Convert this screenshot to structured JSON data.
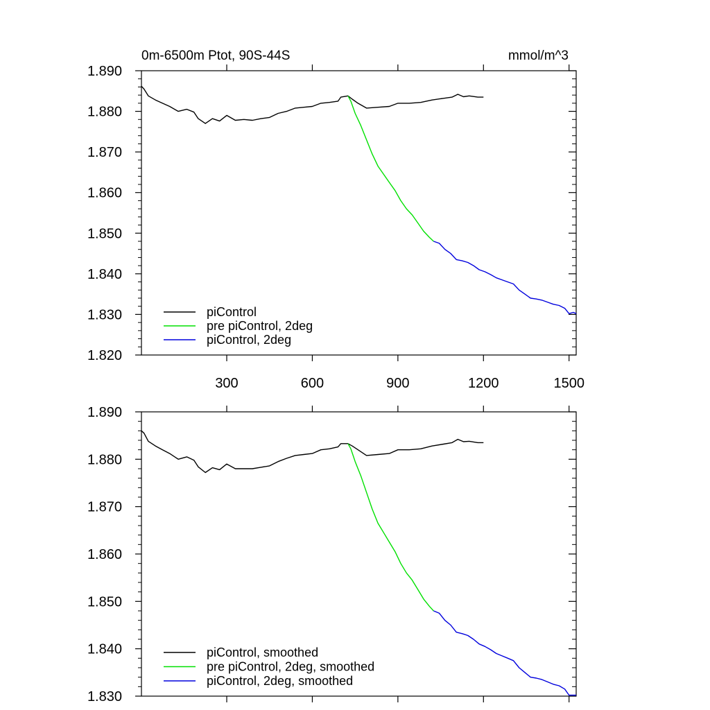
{
  "chart_data": [
    {
      "type": "line",
      "title_left": "0m-6500m Ptot, 90S-44S",
      "title_right": "mmol/m^3",
      "xlim": [
        1,
        1525
      ],
      "ylim": [
        1.82,
        1.89
      ],
      "y_ticks": [
        "1.820",
        "1.830",
        "1.840",
        "1.850",
        "1.860",
        "1.870",
        "1.880",
        "1.890"
      ],
      "x_ticks": [
        "300",
        "600",
        "900",
        "1200",
        "1500"
      ],
      "legend_location": "bottom-left",
      "series": [
        {
          "name": "piControl",
          "color": "#000000",
          "x": [
            1,
            10,
            25,
            50,
            75,
            100,
            130,
            160,
            185,
            200,
            225,
            250,
            275,
            300,
            330,
            360,
            390,
            420,
            450,
            480,
            510,
            540,
            570,
            600,
            630,
            660,
            690,
            700,
            725,
            740,
            760,
            790,
            830,
            870,
            900,
            940,
            980,
            1020,
            1060,
            1090,
            1110,
            1130,
            1150,
            1180,
            1200
          ],
          "y": [
            1.8862,
            1.8855,
            1.8838,
            1.8828,
            1.882,
            1.8812,
            1.88,
            1.8805,
            1.8798,
            1.8782,
            1.877,
            1.8782,
            1.8776,
            1.879,
            1.8778,
            1.878,
            1.8778,
            1.8782,
            1.8785,
            1.8795,
            1.88,
            1.8808,
            1.881,
            1.8812,
            1.882,
            1.8822,
            1.8825,
            1.8835,
            1.8838,
            1.883,
            1.882,
            1.8808,
            1.881,
            1.8812,
            1.882,
            1.882,
            1.8822,
            1.8828,
            1.8832,
            1.8835,
            1.8842,
            1.8836,
            1.8838,
            1.8835,
            1.8835
          ]
        },
        {
          "name": "pre piControl, 2deg",
          "color": "#00e000",
          "x": [
            725,
            735,
            750,
            770,
            790,
            810,
            830,
            850,
            870,
            890,
            910,
            930,
            950,
            970,
            990,
            1010,
            1025
          ],
          "y": [
            1.8838,
            1.8825,
            1.8795,
            1.8765,
            1.873,
            1.8695,
            1.8665,
            1.8645,
            1.8625,
            1.8605,
            1.858,
            1.856,
            1.8545,
            1.8525,
            1.8505,
            1.849,
            1.848
          ]
        },
        {
          "name": "piControl, 2deg",
          "color": "#0000dd",
          "x": [
            1025,
            1045,
            1065,
            1085,
            1105,
            1125,
            1145,
            1165,
            1185,
            1205,
            1225,
            1245,
            1265,
            1285,
            1305,
            1325,
            1345,
            1365,
            1385,
            1405,
            1425,
            1445,
            1465,
            1485,
            1500,
            1515,
            1525
          ],
          "y": [
            1.848,
            1.8475,
            1.846,
            1.845,
            1.8435,
            1.8432,
            1.8428,
            1.842,
            1.841,
            1.8405,
            1.8398,
            1.839,
            1.8385,
            1.838,
            1.8375,
            1.836,
            1.835,
            1.834,
            1.8338,
            1.8335,
            1.833,
            1.8325,
            1.8322,
            1.8315,
            1.8302,
            1.8305,
            1.8302
          ]
        }
      ]
    },
    {
      "type": "line",
      "xlim": [
        1,
        1525
      ],
      "ylim": [
        1.83,
        1.89
      ],
      "y_ticks": [
        "1.830",
        "1.840",
        "1.850",
        "1.860",
        "1.870",
        "1.880",
        "1.890"
      ],
      "legend_location": "bottom-left",
      "series": [
        {
          "name": "piControl, smoothed",
          "color": "#000000",
          "x": [
            1,
            10,
            25,
            50,
            75,
            100,
            130,
            160,
            185,
            200,
            225,
            250,
            275,
            300,
            330,
            360,
            390,
            420,
            450,
            480,
            510,
            540,
            570,
            600,
            630,
            660,
            690,
            700,
            725,
            740,
            760,
            790,
            830,
            870,
            900,
            940,
            980,
            1020,
            1060,
            1090,
            1110,
            1130,
            1150,
            1180,
            1200
          ],
          "y": [
            1.886,
            1.8855,
            1.8838,
            1.8828,
            1.882,
            1.8812,
            1.88,
            1.8805,
            1.8798,
            1.8784,
            1.8772,
            1.8782,
            1.8778,
            1.879,
            1.878,
            1.878,
            1.878,
            1.8783,
            1.8786,
            1.8795,
            1.8802,
            1.8808,
            1.881,
            1.8812,
            1.882,
            1.8822,
            1.8826,
            1.8833,
            1.8833,
            1.8828,
            1.882,
            1.8808,
            1.881,
            1.8812,
            1.882,
            1.882,
            1.8822,
            1.8828,
            1.8832,
            1.8835,
            1.8842,
            1.8837,
            1.8838,
            1.8835,
            1.8835
          ]
        },
        {
          "name": "pre piControl, 2deg, smoothed",
          "color": "#00e000",
          "x": [
            725,
            735,
            750,
            770,
            790,
            810,
            830,
            850,
            870,
            890,
            910,
            930,
            950,
            970,
            990,
            1010,
            1025
          ],
          "y": [
            1.8833,
            1.8822,
            1.8795,
            1.8765,
            1.873,
            1.8695,
            1.8665,
            1.8645,
            1.8625,
            1.8605,
            1.858,
            1.856,
            1.8545,
            1.8525,
            1.8505,
            1.849,
            1.848
          ]
        },
        {
          "name": "piControl, 2deg, smoothed",
          "color": "#0000dd",
          "x": [
            1025,
            1045,
            1065,
            1085,
            1105,
            1125,
            1145,
            1165,
            1185,
            1205,
            1225,
            1245,
            1265,
            1285,
            1305,
            1325,
            1345,
            1365,
            1385,
            1405,
            1425,
            1445,
            1465,
            1485,
            1500,
            1515,
            1525
          ],
          "y": [
            1.848,
            1.8475,
            1.846,
            1.845,
            1.8435,
            1.8432,
            1.8428,
            1.842,
            1.841,
            1.8405,
            1.8398,
            1.839,
            1.8385,
            1.838,
            1.8375,
            1.836,
            1.835,
            1.834,
            1.8338,
            1.8335,
            1.833,
            1.8325,
            1.8322,
            1.8315,
            1.8302,
            1.8302,
            1.8302
          ]
        }
      ]
    }
  ]
}
